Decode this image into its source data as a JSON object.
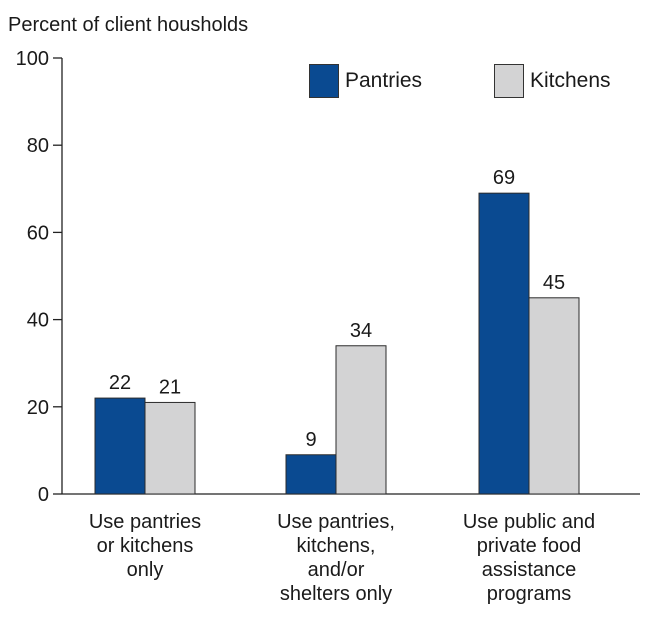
{
  "chart_data": {
    "type": "bar",
    "ylabel": "Percent of client housholds",
    "ylim": [
      0,
      100
    ],
    "yticks": [
      0,
      20,
      40,
      60,
      80,
      100
    ],
    "grid": false,
    "legend_position": "top-right",
    "categories": [
      [
        "Use pantries",
        "or kitchens",
        "only"
      ],
      [
        "Use pantries,",
        "kitchens,",
        "and/or",
        "shelters only"
      ],
      [
        "Use public and",
        "private food",
        "assistance",
        "programs"
      ]
    ],
    "series": [
      {
        "name": "Pantries",
        "color": "#0a4a91",
        "values": [
          22,
          9,
          69
        ]
      },
      {
        "name": "Kitchens",
        "color": "#d3d3d4",
        "values": [
          21,
          34,
          45
        ]
      }
    ]
  }
}
